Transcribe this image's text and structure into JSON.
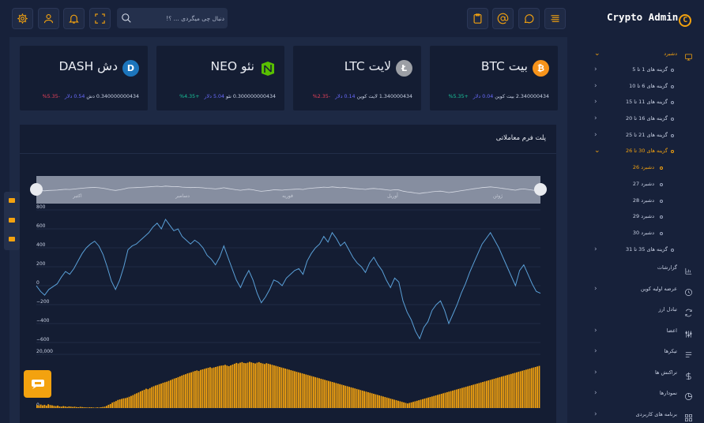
{
  "brand": {
    "name": "Crypto Admin",
    "logo_glyph": "C",
    "accent": "#f3a20f"
  },
  "topbar": {
    "search_placeholder": "دنبال چی میگردی ... ؟!",
    "icons": [
      "settings-icon",
      "user-icon",
      "bell-icon",
      "fullscreen-icon",
      "search-icon",
      "clipboard-icon",
      "at-icon",
      "chat-icon",
      "menu-icon"
    ]
  },
  "sidebar": {
    "dashboard": {
      "label": "دشبرد",
      "icon": "monitor-icon"
    },
    "groups": [
      {
        "label": "گزینه های 1 تا 5"
      },
      {
        "label": "گزینه های 6 تا 10"
      },
      {
        "label": "گزینه های 11 تا 15"
      },
      {
        "label": "گزینه های 16 تا 20"
      },
      {
        "label": "گزینه های 21 تا 25"
      },
      {
        "label": "گزینه های 30 تا 26",
        "active": true
      }
    ],
    "dashboards": [
      {
        "label": "دشبرد 26",
        "active": true
      },
      {
        "label": "دشبرد 27"
      },
      {
        "label": "دشبرد 28"
      },
      {
        "label": "دشبرد 29"
      },
      {
        "label": "دشبرد 30"
      }
    ],
    "last_group": {
      "label": "گزینه های 35 تا 31"
    },
    "sections": [
      {
        "label": "گزارشات",
        "icon": "chart-icon",
        "chevron": false
      },
      {
        "label": "عرضه اولیه کوین",
        "icon": "clock-icon",
        "chevron": true
      },
      {
        "label": "تبادل ارز",
        "icon": "refresh-icon",
        "chevron": false
      },
      {
        "label": "اعضا",
        "icon": "sliders-icon",
        "chevron": true
      },
      {
        "label": "تیکرها",
        "icon": "ticker-icon",
        "chevron": true
      },
      {
        "label": "تراکنش ها",
        "icon": "dollar-icon",
        "chevron": true
      },
      {
        "label": "نمودارها",
        "icon": "pie-icon",
        "chevron": true
      },
      {
        "label": "برنامه های کاربردی",
        "icon": "grid-icon",
        "chevron": true
      }
    ]
  },
  "cards": [
    {
      "name": "بیت BTC",
      "amount": "2.340000434",
      "coin": "بیت کوین",
      "usd": "0.04 دلار",
      "change": "+5.35%",
      "up": true,
      "color": "#f7931a",
      "glyph": "₿"
    },
    {
      "name": "لایت LTC",
      "amount": "1.340000434",
      "coin": "لایت کوین",
      "usd": "0.14 دلار",
      "change": "-2.35%",
      "up": false,
      "color": "#9c9fa5",
      "glyph": "Ł"
    },
    {
      "name": "نئو NEO",
      "amount": "0.300000000434",
      "coin": "نئو",
      "usd": "5.04 دلار",
      "change": "+4.35%",
      "up": true,
      "color": "#58bf00",
      "glyph": "N"
    },
    {
      "name": "دش DASH",
      "amount": "0.340000000434",
      "coin": "دش",
      "usd": "0.54 دلار",
      "change": "-5.35%",
      "up": false,
      "color": "#1c75bc",
      "glyph": "D"
    }
  ],
  "chart": {
    "title": "پلت فرم معاملاتی"
  },
  "chart_data": [
    {
      "type": "line",
      "y_ticks": [
        "800",
        "600",
        "400",
        "200",
        "0",
        "−200",
        "−400",
        "−600"
      ],
      "ylim": [
        -650,
        800
      ],
      "values": [
        0,
        -60,
        -100,
        -40,
        -10,
        20,
        90,
        150,
        120,
        180,
        260,
        340,
        400,
        440,
        470,
        420,
        330,
        200,
        50,
        -40,
        60,
        200,
        380,
        420,
        440,
        480,
        520,
        560,
        620,
        660,
        600,
        700,
        640,
        580,
        600,
        520,
        480,
        440,
        480,
        450,
        400,
        320,
        280,
        220,
        300,
        420,
        300,
        180,
        60,
        -20,
        80,
        160,
        60,
        -80,
        -180,
        -120,
        -40,
        60,
        40,
        0,
        80,
        120,
        160,
        180,
        120,
        260,
        340,
        400,
        440,
        520,
        460,
        560,
        500,
        420,
        460,
        380,
        300,
        240,
        200,
        140,
        240,
        300,
        220,
        160,
        60,
        -20,
        80,
        40,
        -160,
        -280,
        -360,
        -480,
        -560,
        -440,
        -380,
        -260,
        -200,
        -160,
        -260,
        -400,
        -300,
        -200,
        -80,
        20,
        140,
        240,
        340,
        440,
        500,
        560,
        480,
        400,
        300,
        200,
        100,
        0,
        160,
        220,
        120,
        20,
        -60,
        -80
      ]
    },
    {
      "type": "bar",
      "y_ticks": [
        "20,000",
        "0"
      ],
      "ylim": [
        0,
        20000
      ],
      "values": [
        1100,
        900,
        1300,
        1000,
        1200,
        900,
        1400,
        1100,
        1000,
        800,
        700,
        900,
        600,
        500,
        700,
        600,
        400,
        600,
        500,
        400,
        500,
        350,
        300,
        450,
        350,
        300,
        250,
        200,
        300,
        250,
        200,
        150,
        250,
        200,
        300,
        400,
        500,
        800,
        1200,
        1500,
        2000,
        2300,
        2600,
        3000,
        3200,
        3400,
        3600,
        3700,
        3900,
        4200,
        4500,
        4800,
        5200,
        5500,
        5800,
        6200,
        6500,
        6800,
        7200,
        7000,
        7400,
        7800,
        8100,
        8400,
        8600,
        8900,
        9100,
        9400,
        9600,
        9800,
        10100,
        10400,
        10700,
        11000,
        11200,
        11500,
        11800,
        12100,
        12400,
        12600,
        12900,
        13100,
        13300,
        13600,
        13800,
        14000,
        13800,
        14200,
        14400,
        14600,
        14800,
        15000,
        15200,
        14900,
        15100,
        15300,
        15500,
        15700,
        15800,
        15900,
        16100,
        15800,
        15600,
        15900,
        16200,
        16500,
        16800,
        16600,
        16900,
        17100,
        16800,
        16700,
        16900,
        17200,
        17000,
        16800,
        16600,
        16900,
        17100,
        16800,
        16600,
        16400,
        16700,
        16500,
        16300,
        16100,
        15900,
        15700,
        15500,
        15300,
        15100,
        14900,
        14700,
        14500,
        14300,
        14100,
        13900,
        13700,
        13500,
        13300,
        13100,
        12900,
        12700,
        12500,
        12300,
        12100,
        11900,
        11700,
        11500,
        11300,
        11100,
        10900,
        10700,
        10500,
        10300,
        10100,
        9900,
        9700,
        9500,
        9300,
        9100,
        8900,
        8700,
        8500,
        8300,
        8100,
        7900,
        7700,
        7500,
        7300,
        7100,
        6900,
        6700,
        6500,
        6300,
        6100,
        5900,
        5700,
        5500,
        5300,
        5100,
        4900,
        4700,
        4500,
        4300,
        4100,
        3900,
        3700,
        3500,
        3300,
        3100,
        2900,
        2700,
        2500,
        2300,
        2100,
        1900,
        1700,
        1900,
        2100,
        2300,
        2500,
        2700,
        2900,
        3100,
        3300,
        3500,
        3700,
        3900,
        4100,
        4300,
        4500,
        4700,
        4900,
        5100,
        5300,
        5500,
        5700,
        5900,
        6100,
        6300,
        6500,
        6700,
        6900,
        7100,
        7300,
        7500,
        7700,
        7900,
        8100,
        8300,
        8500,
        8700,
        8900,
        9100,
        9300,
        9500,
        9700,
        9900,
        10100,
        10300,
        10500,
        10700,
        10900,
        11100,
        11300,
        11500,
        11700,
        11900,
        12100,
        12300,
        12500,
        12700,
        12900,
        13100,
        13300,
        13500,
        13700,
        13900,
        14100,
        14300,
        14500,
        14700,
        14900,
        15100,
        15300,
        15500,
        15700
      ]
    }
  ],
  "navigator": {
    "labels": [
      "ژوئن",
      "آوریل",
      "فوریه",
      "دسامبر",
      "اکتبر"
    ]
  }
}
